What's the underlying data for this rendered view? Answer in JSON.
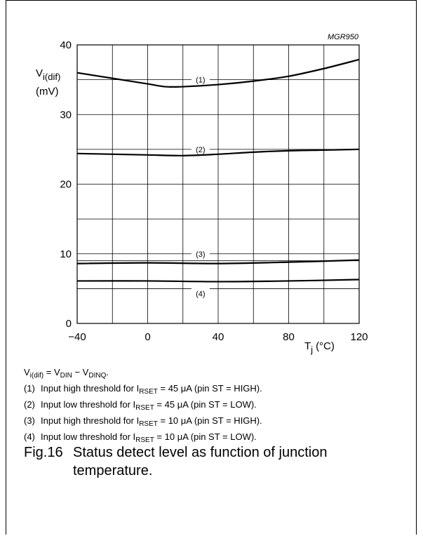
{
  "chart_data": {
    "type": "line",
    "figure_id": "MGR950",
    "ylabel_main": "V",
    "ylabel_sub": "i(dif)",
    "ylabel_unit": "(mV)",
    "xlabel_main": "T",
    "xlabel_sub": "j",
    "xlabel_unit": "(°C)",
    "xlim": [
      -40,
      120
    ],
    "ylim": [
      0,
      40
    ],
    "xticks": [
      -40,
      0,
      40,
      80,
      120
    ],
    "xtick_labels": [
      "−40",
      "0",
      "40",
      "80",
      "120"
    ],
    "yticks": [
      0,
      10,
      20,
      30,
      40
    ],
    "ytick_labels": [
      "0",
      "10",
      "20",
      "30",
      "40"
    ],
    "grid": true,
    "series": [
      {
        "name": "(1)",
        "x": [
          -40,
          -20,
          0,
          10,
          20,
          40,
          60,
          80,
          100,
          120
        ],
        "y": [
          36.0,
          35.2,
          34.4,
          34.0,
          34.0,
          34.3,
          34.8,
          35.5,
          36.6,
          37.9
        ]
      },
      {
        "name": "(2)",
        "x": [
          -40,
          -20,
          0,
          20,
          40,
          60,
          80,
          100,
          120
        ],
        "y": [
          24.4,
          24.3,
          24.2,
          24.1,
          24.3,
          24.6,
          24.8,
          24.9,
          25.0
        ]
      },
      {
        "name": "(3)",
        "x": [
          -40,
          0,
          40,
          80,
          120
        ],
        "y": [
          8.6,
          8.7,
          8.6,
          8.8,
          9.1
        ]
      },
      {
        "name": "(4)",
        "x": [
          -40,
          0,
          40,
          80,
          120
        ],
        "y": [
          6.1,
          6.1,
          6.0,
          6.1,
          6.3
        ]
      }
    ]
  },
  "notes": {
    "formula": {
      "v": "V",
      "v_sub": "i(dif)",
      "eq": " = V",
      "din_sub": "DIN",
      "minus": " − V",
      "dinq_sub": "DINQ",
      "end": "."
    },
    "items": [
      {
        "num": "(1)",
        "pre": "Input high threshold for I",
        "sub": "RSET",
        "post": " = 45 μA (pin ST = HIGH)."
      },
      {
        "num": "(2)",
        "pre": "Input low threshold for I",
        "sub": "RSET",
        "post": " = 45 μA (pin ST = LOW)."
      },
      {
        "num": "(3)",
        "pre": "Input high threshold for I",
        "sub": "RSET",
        "post": " = 10 μA (pin ST = HIGH)."
      },
      {
        "num": "(4)",
        "pre": "Input low threshold for I",
        "sub": "RSET",
        "post": " = 10 μA (pin ST = LOW)."
      }
    ]
  },
  "caption": {
    "fig": "Fig.16",
    "text": "Status detect level as function of junction temperature."
  }
}
